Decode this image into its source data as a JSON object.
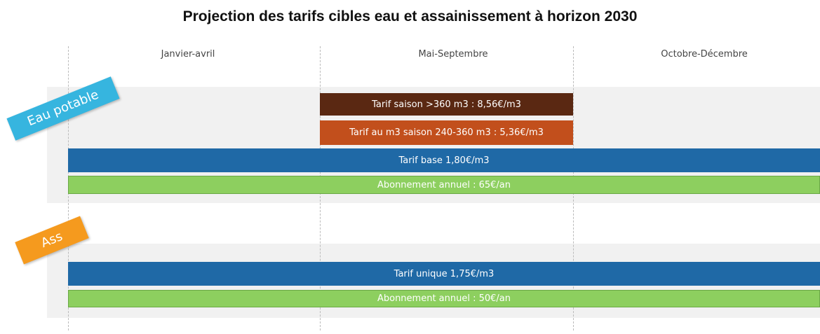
{
  "title": "Projection des tarifs cibles eau et assainissement à horizon 2030",
  "columns": [
    "Janvier-avril",
    "Mai-Septembre",
    "Octobre-Décembre"
  ],
  "sections": [
    {
      "tag": "Eau potable",
      "bars": [
        "Tarif saison >360 m3 : 8,56€/m3",
        "Tarif au m3 saison 240-360 m3 : 5,36€/m3",
        "Tarif base 1,80€/m3",
        "Abonnement annuel : 65€/an"
      ]
    },
    {
      "tag": "Ass",
      "bars": [
        "Tarif unique 1,75€/m3",
        "Abonnement annuel : 50€/an"
      ]
    }
  ]
}
